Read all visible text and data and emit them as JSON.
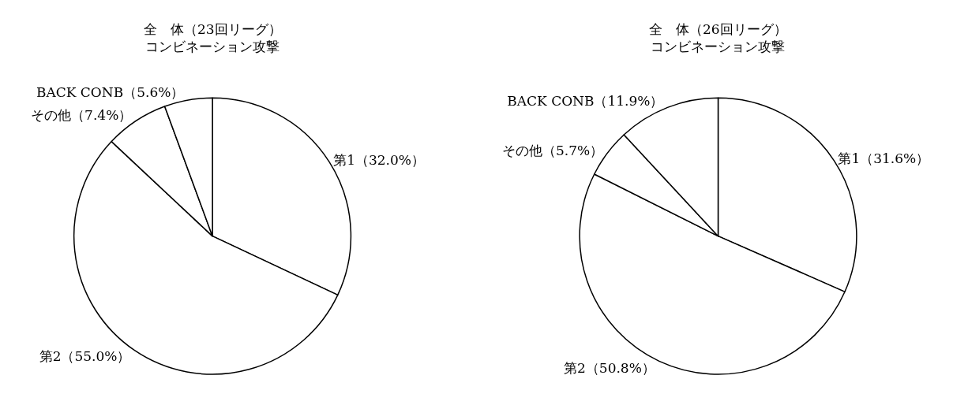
{
  "chart_data": [
    {
      "type": "pie",
      "title": "全　体（23回リーグ）",
      "subtitle": "コンビネーション攻撃",
      "categories": [
        "第1",
        "第2",
        "その他",
        "BACK CONB"
      ],
      "values": [
        32.0,
        55.0,
        7.4,
        5.6
      ],
      "value_labels": [
        "（32.0%）",
        "（55.0%）",
        "（7.4%）",
        "（5.6%）"
      ],
      "colors": [
        "#ffffff",
        "#ffffff",
        "#ffffff",
        "#ffffff"
      ]
    },
    {
      "type": "pie",
      "title": "全　体（26回リーグ）",
      "subtitle": "コンビネーション攻撃",
      "categories": [
        "第1",
        "第2",
        "その他",
        "BACK CONB"
      ],
      "values": [
        31.6,
        50.8,
        5.7,
        11.9
      ],
      "value_labels": [
        "（31.6%）",
        "（50.8%）",
        "（5.7%）",
        "（11.9%）"
      ],
      "colors": [
        "#ffffff",
        "#ffffff",
        "#ffffff",
        "#ffffff"
      ]
    }
  ]
}
